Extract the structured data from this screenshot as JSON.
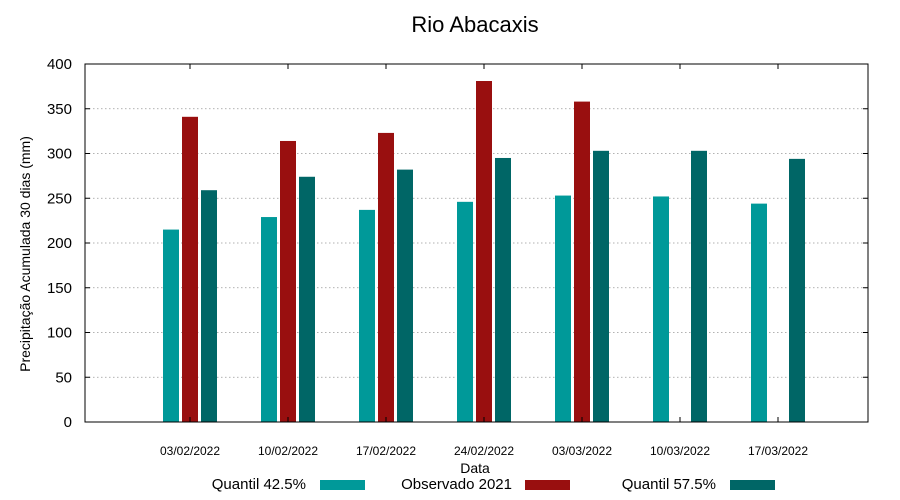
{
  "chart_data": {
    "type": "bar",
    "title": "Rio Abacaxis",
    "xlabel": "Data",
    "ylabel": "Precipitação Acumulada 30 dias (mm)",
    "ylim": [
      0,
      400
    ],
    "yticks": [
      0,
      50,
      100,
      150,
      200,
      250,
      300,
      350,
      400
    ],
    "grid": true,
    "legend_position": "bottom",
    "categories": [
      "03/02/2022",
      "10/02/2022",
      "17/02/2022",
      "24/02/2022",
      "03/03/2022",
      "10/03/2022",
      "17/03/2022"
    ],
    "series": [
      {
        "name": "Quantil 42.5%",
        "color": "#009999",
        "values": [
          215,
          229,
          237,
          246,
          253,
          252,
          244
        ]
      },
      {
        "name": "Observado 2021",
        "color": "#990f0f",
        "values": [
          341,
          314,
          323,
          381,
          358,
          null,
          null
        ]
      },
      {
        "name": "Quantil 57.5%",
        "color": "#006666",
        "values": [
          259,
          274,
          282,
          295,
          303,
          303,
          294
        ]
      }
    ]
  }
}
